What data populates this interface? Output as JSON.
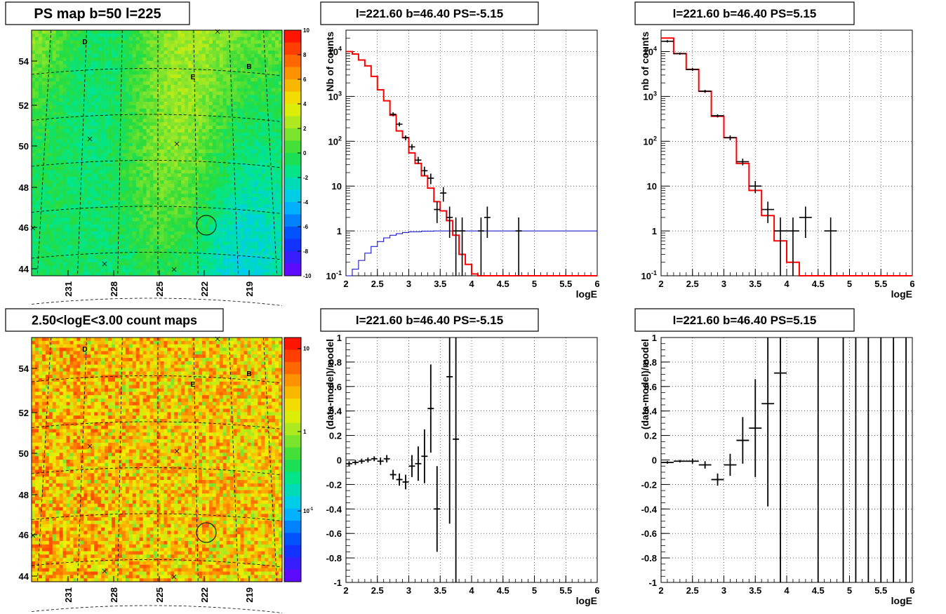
{
  "chart_data": [
    {
      "id": "ps-map",
      "type": "heatmap",
      "title": "PS map b=50 l=225",
      "x_ticks": [
        "231",
        "228",
        "225",
        "222",
        "219"
      ],
      "y_ticks": [
        "54",
        "52",
        "50",
        "48",
        "46",
        "44"
      ],
      "colorbar_ticks": [
        "10",
        "8",
        "6",
        "4",
        "2",
        "0",
        "-2",
        "-4",
        "-6",
        "-8",
        "-10"
      ],
      "colorbar_range": [
        -10,
        10
      ],
      "markers": [
        "D",
        "E",
        "B"
      ],
      "colormap": "rainbow",
      "dominant_color": "#33e24a"
    },
    {
      "id": "spectrum-neg",
      "type": "line",
      "title": "l=221.60 b=46.40 PS=-5.15",
      "xlabel": "logE",
      "ylabel": "Nb of counts",
      "xlim": [
        2,
        6
      ],
      "ylim": [
        0.1,
        30000
      ],
      "log_y": true,
      "grid": true,
      "x_ticks": [
        "2",
        "2.5",
        "3",
        "3.5",
        "4",
        "4.5",
        "5",
        "5.5",
        "6"
      ],
      "y_ticks": [
        "10^{-1}",
        "1",
        "10",
        "10^{2}",
        "10^{3}",
        "10^{4}"
      ],
      "bin_edges": [
        2.0,
        2.1,
        2.2,
        2.3,
        2.4,
        2.5,
        2.6,
        2.7,
        2.8,
        2.9,
        3.0,
        3.1,
        3.2,
        3.3,
        3.4,
        3.5,
        3.6,
        3.7,
        3.8,
        3.9,
        4.0,
        4.1,
        4.2,
        6.0
      ],
      "model_values": [
        10000,
        8800,
        6500,
        4800,
        2800,
        1400,
        800,
        380,
        170,
        120,
        55,
        32,
        17,
        9,
        4.5,
        2.8,
        1.7,
        0.8,
        0.3,
        0.18,
        0.11,
        0.1,
        0.1
      ],
      "data_points": [
        {
          "x": 2.75,
          "y": 400,
          "lo": 360,
          "hi": 440
        },
        {
          "x": 2.85,
          "y": 240,
          "lo": 215,
          "hi": 265
        },
        {
          "x": 2.95,
          "y": 120,
          "lo": 105,
          "hi": 135
        },
        {
          "x": 3.05,
          "y": 75,
          "lo": 64,
          "hi": 86
        },
        {
          "x": 3.15,
          "y": 38,
          "lo": 31,
          "hi": 45
        },
        {
          "x": 3.25,
          "y": 22,
          "lo": 17,
          "hi": 27
        },
        {
          "x": 3.35,
          "y": 15,
          "lo": 11,
          "hi": 19
        },
        {
          "x": 3.45,
          "y": 3,
          "lo": 1.5,
          "hi": 4.5
        },
        {
          "x": 3.55,
          "y": 7,
          "lo": 4.5,
          "hi": 9.5
        },
        {
          "x": 3.65,
          "y": 2,
          "lo": 0.7,
          "hi": 3.5
        },
        {
          "x": 3.75,
          "y": 1,
          "lo": 0.1,
          "hi": 2
        },
        {
          "x": 3.85,
          "y": 1,
          "lo": 0.1,
          "hi": 2
        },
        {
          "x": 4.15,
          "y": 1,
          "lo": 0.1,
          "hi": 2
        },
        {
          "x": 4.25,
          "y": 2,
          "lo": 0.7,
          "hi": 3.5
        },
        {
          "x": 4.75,
          "y": 1,
          "lo": 0.1,
          "hi": 2
        }
      ],
      "efficiency_x": [
        2.0,
        2.1,
        2.2,
        2.3,
        2.4,
        2.5,
        2.6,
        2.7,
        2.8,
        2.9,
        3.0,
        3.2,
        3.4,
        3.6,
        6.0
      ],
      "efficiency_y": [
        0.1,
        0.14,
        0.22,
        0.32,
        0.45,
        0.58,
        0.7,
        0.8,
        0.87,
        0.92,
        0.96,
        0.99,
        1.0,
        1.0,
        1.0
      ],
      "colors": {
        "model": "#ff0000",
        "data": "#000000",
        "efficiency": "#0000cc"
      }
    },
    {
      "id": "spectrum-pos",
      "type": "line",
      "title": "l=221.60 b=46.40 PS=5.15",
      "xlabel": "logE",
      "ylabel": "nb of counts",
      "xlim": [
        2,
        6
      ],
      "ylim": [
        0.1,
        30000
      ],
      "log_y": true,
      "grid": true,
      "x_ticks": [
        "2",
        "2.5",
        "3",
        "3.5",
        "4",
        "4.5",
        "5",
        "5.5",
        "6"
      ],
      "y_ticks": [
        "10^{-1}",
        "1",
        "10",
        "10^{2}",
        "10^{3}",
        "10^{4}"
      ],
      "bin_edges": [
        2.0,
        2.2,
        2.4,
        2.6,
        2.8,
        3.0,
        3.2,
        3.4,
        3.6,
        3.8,
        4.0,
        4.2,
        6.0
      ],
      "model_values": [
        20000,
        9000,
        4000,
        1300,
        360,
        120,
        32,
        8,
        2.2,
        0.6,
        0.2,
        0.1
      ],
      "data_points": [
        {
          "x": 2.1,
          "y": 17000,
          "lo": 16000,
          "hi": 18000
        },
        {
          "x": 2.3,
          "y": 9000,
          "lo": 8500,
          "hi": 9500
        },
        {
          "x": 2.5,
          "y": 4000,
          "lo": 3700,
          "hi": 4300
        },
        {
          "x": 2.7,
          "y": 1300,
          "lo": 1200,
          "hi": 1400
        },
        {
          "x": 2.9,
          "y": 370,
          "lo": 340,
          "hi": 400
        },
        {
          "x": 3.1,
          "y": 120,
          "lo": 105,
          "hi": 135
        },
        {
          "x": 3.3,
          "y": 35,
          "lo": 29,
          "hi": 41
        },
        {
          "x": 3.5,
          "y": 10,
          "lo": 7,
          "hi": 13
        },
        {
          "x": 3.7,
          "y": 3,
          "lo": 1.5,
          "hi": 4.5
        },
        {
          "x": 3.9,
          "y": 1,
          "lo": 0.1,
          "hi": 2
        },
        {
          "x": 4.1,
          "y": 1,
          "lo": 0.1,
          "hi": 2
        },
        {
          "x": 4.3,
          "y": 2,
          "lo": 0.7,
          "hi": 3.5
        },
        {
          "x": 4.7,
          "y": 1,
          "lo": 0.1,
          "hi": 2
        }
      ],
      "colors": {
        "model": "#ff0000",
        "data": "#000000"
      }
    },
    {
      "id": "count-map",
      "type": "heatmap",
      "title": "2.50<logE<3.00 count maps",
      "x_ticks": [
        "231",
        "228",
        "225",
        "222",
        "219"
      ],
      "y_ticks": [
        "54",
        "52",
        "50",
        "48",
        "46",
        "44"
      ],
      "colorbar_ticks": [
        "10",
        "1",
        "10^{-1}"
      ],
      "colorbar_range": [
        0.03,
        15
      ],
      "log_z": true,
      "markers": [
        "D",
        "E",
        "B"
      ],
      "colormap": "rainbow",
      "dominant_color": "#f08a1c"
    },
    {
      "id": "residual-neg",
      "type": "scatter",
      "title": "l=221.60 b=46.40 PS=-5.15",
      "xlabel": "logE",
      "ylabel": "(data-model)/model",
      "xlim": [
        2,
        6
      ],
      "ylim": [
        -1,
        1
      ],
      "grid": true,
      "x_ticks": [
        "2",
        "2.5",
        "3",
        "3.5",
        "4",
        "4.5",
        "5",
        "5.5",
        "6"
      ],
      "y_ticks": [
        "-1",
        "-0.8",
        "-0.6",
        "-0.4",
        "-0.2",
        "0",
        "0.2",
        "0.4",
        "0.6",
        "0.8",
        "1"
      ],
      "points": [
        {
          "x": 2.05,
          "y": -0.03,
          "e": 0.02
        },
        {
          "x": 2.15,
          "y": -0.02,
          "e": 0.02
        },
        {
          "x": 2.25,
          "y": -0.01,
          "e": 0.02
        },
        {
          "x": 2.35,
          "y": 0.0,
          "e": 0.02
        },
        {
          "x": 2.45,
          "y": 0.01,
          "e": 0.02
        },
        {
          "x": 2.55,
          "y": -0.01,
          "e": 0.03
        },
        {
          "x": 2.65,
          "y": 0.01,
          "e": 0.03
        },
        {
          "x": 2.75,
          "y": -0.12,
          "e": 0.04
        },
        {
          "x": 2.85,
          "y": -0.16,
          "e": 0.05
        },
        {
          "x": 2.95,
          "y": -0.18,
          "e": 0.06
        },
        {
          "x": 3.05,
          "y": -0.05,
          "e": 0.09
        },
        {
          "x": 3.15,
          "y": -0.03,
          "e": 0.14
        },
        {
          "x": 3.25,
          "y": 0.03,
          "e": 0.22
        },
        {
          "x": 3.35,
          "y": 0.42,
          "e": 0.36
        },
        {
          "x": 3.45,
          "y": -0.4,
          "e": 0.35
        },
        {
          "x": 3.65,
          "y": 0.68,
          "e": 1.2
        },
        {
          "x": 3.75,
          "y": 0.17,
          "e": 1.2
        }
      ]
    },
    {
      "id": "residual-pos",
      "type": "scatter",
      "title": "l=221.60 b=46.40 PS=5.15",
      "xlabel": "logE",
      "ylabel": "(data-model)/model",
      "xlim": [
        2,
        6
      ],
      "ylim": [
        -1,
        1
      ],
      "grid": true,
      "x_ticks": [
        "2",
        "2.5",
        "3",
        "3.5",
        "4",
        "4.5",
        "5",
        "5.5",
        "6"
      ],
      "y_ticks": [
        "-1",
        "-0.8",
        "-0.6",
        "-0.4",
        "-0.2",
        "0",
        "0.2",
        "0.4",
        "0.6",
        "0.8",
        "1"
      ],
      "points": [
        {
          "x": 2.1,
          "y": -0.02,
          "e": 0.01
        },
        {
          "x": 2.3,
          "y": -0.01,
          "e": 0.01
        },
        {
          "x": 2.5,
          "y": -0.01,
          "e": 0.02
        },
        {
          "x": 2.7,
          "y": -0.04,
          "e": 0.03
        },
        {
          "x": 2.9,
          "y": -0.16,
          "e": 0.05
        },
        {
          "x": 3.1,
          "y": -0.04,
          "e": 0.09
        },
        {
          "x": 3.3,
          "y": 0.16,
          "e": 0.19
        },
        {
          "x": 3.5,
          "y": 0.26,
          "e": 0.4
        },
        {
          "x": 3.7,
          "y": 0.46,
          "e": 0.84
        },
        {
          "x": 3.9,
          "y": 0.71,
          "e": 1.8
        },
        {
          "x": 4.5,
          "y": 0,
          "e": 2.0
        },
        {
          "x": 4.9,
          "y": 0,
          "e": 2.0
        },
        {
          "x": 5.1,
          "y": 0,
          "e": 2.0
        },
        {
          "x": 5.3,
          "y": 0,
          "e": 2.0
        },
        {
          "x": 5.5,
          "y": 0,
          "e": 2.0
        },
        {
          "x": 5.7,
          "y": 0,
          "e": 2.0
        },
        {
          "x": 5.9,
          "y": 0,
          "e": 2.0
        }
      ]
    }
  ]
}
